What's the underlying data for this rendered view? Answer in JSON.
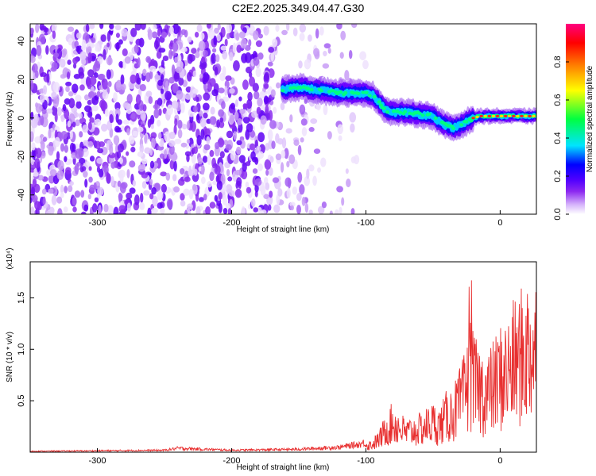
{
  "title": "C2E2.2025.349.04.47.G30",
  "chart_data": [
    {
      "type": "heatmap",
      "xlabel": "Height of straight line (km)",
      "ylabel": "Frequency (Hz)",
      "xlim": [
        -350,
        27
      ],
      "ylim": [
        -50,
        49
      ],
      "x_ticks": [
        -300,
        -200,
        -100,
        0
      ],
      "y_ticks": [
        -40,
        -20,
        0,
        20,
        40
      ],
      "colorbar": {
        "label": "Normalized spectral amplitude",
        "range": [
          0,
          1
        ],
        "ticks": [
          0.0,
          0.2,
          0.4,
          0.6,
          0.8
        ],
        "colormap": [
          "#ffffff",
          "#d6b4fb",
          "#8c28f0",
          "#5000ff",
          "#0000ff",
          "#00e4ff",
          "#00ff40",
          "#ffff00",
          "#ff8000",
          "#ff0000",
          "#ff0080"
        ]
      },
      "ridge": {
        "x": [
          -160,
          -150,
          -140,
          -130,
          -120,
          -110,
          -100,
          -95,
          -90,
          -85,
          -80,
          -70,
          -60,
          -50,
          -45,
          -40,
          -35,
          -30,
          -25,
          -20,
          -15,
          -10,
          0,
          10,
          27
        ],
        "y": [
          15,
          16,
          15,
          14,
          13,
          13,
          13,
          12,
          8,
          4,
          3,
          3,
          2,
          1,
          -2,
          -4,
          -5,
          -4,
          -2,
          0,
          1,
          1,
          1,
          1,
          1
        ]
      }
    },
    {
      "type": "line",
      "xlabel": "Height of straight line (km)",
      "ylabel": "SNR (10 * v/v)",
      "multiplier_label": "(x10⁴)",
      "xlim": [
        -350,
        27
      ],
      "ylim": [
        0,
        1.85
      ],
      "x_ticks": [
        -300,
        -200,
        -100,
        0
      ],
      "y_ticks": [
        0.5,
        1.0,
        1.5
      ],
      "y_tick_labels": [
        "0.5",
        "1.0",
        "1.5"
      ],
      "line_color": "#e83030",
      "envelope": {
        "x": [
          -350,
          -300,
          -250,
          -240,
          -200,
          -150,
          -120,
          -105,
          -95,
          -90,
          -85,
          -80,
          -70,
          -60,
          -50,
          -45,
          -40,
          -35,
          -30,
          -25,
          -22,
          -20,
          -15,
          -10,
          -5,
          0,
          5,
          10,
          15,
          20,
          27
        ],
        "y": [
          0.01,
          0.015,
          0.02,
          0.04,
          0.02,
          0.03,
          0.05,
          0.08,
          0.12,
          0.2,
          0.35,
          0.45,
          0.3,
          0.35,
          0.45,
          0.4,
          0.55,
          0.6,
          0.75,
          0.95,
          1.2,
          1.05,
          0.95,
          0.9,
          1.0,
          1.15,
          1.2,
          1.35,
          1.45,
          1.55,
          1.6
        ]
      }
    }
  ]
}
